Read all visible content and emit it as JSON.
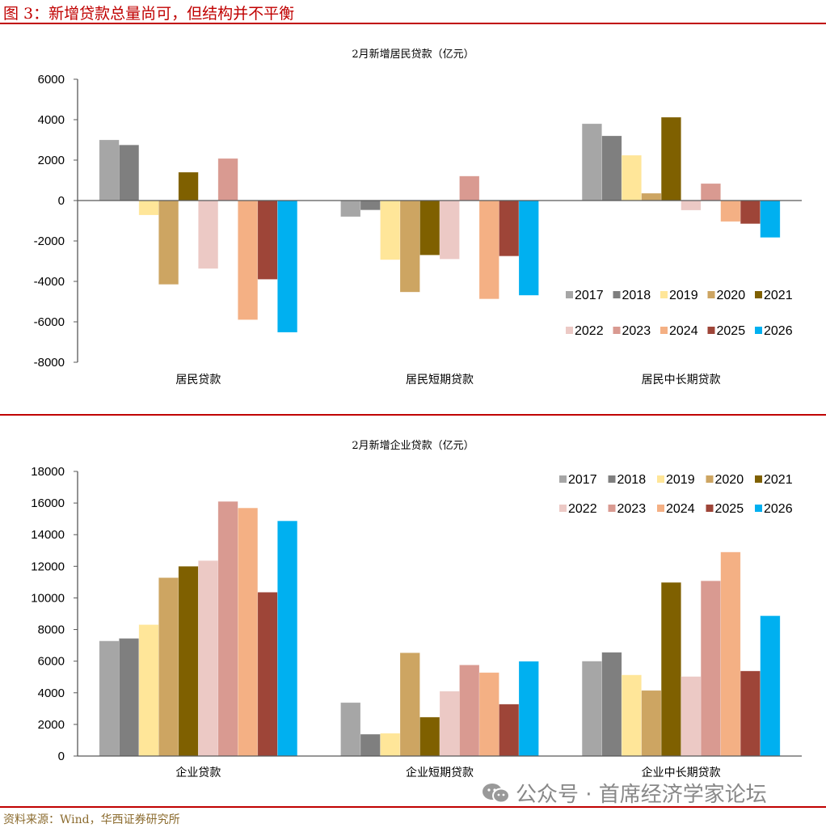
{
  "figure_title": "图 3：新增贷款总量尚可，但结构并不平衡",
  "source": "资料来源：Wind，华西证券研究所",
  "watermark": "公众号 · 首席经济学家论坛",
  "colors": {
    "2017": "#a6a6a6",
    "2018": "#7f7f7f",
    "2019": "#ffe699",
    "2020": "#cda562",
    "2021": "#7f6000",
    "2022": "#ecc9c5",
    "2023": "#d99a91",
    "2024": "#f4b084",
    "2025": "#9e4538",
    "2026": "#00b0f0",
    "rule": "#c00000"
  },
  "chart_data": [
    {
      "type": "bar",
      "title": "2月新增居民贷款（亿元）",
      "xlabel": "",
      "ylabel": "",
      "categories": [
        "居民贷款",
        "居民短期贷款",
        "居民中长期贷款"
      ],
      "ylim": [
        -8000,
        6000
      ],
      "yticks": [
        "6000",
        "4000",
        "2000",
        "0",
        "-2000",
        "-4000",
        "-6000",
        "-8000"
      ],
      "ytick_values": [
        6000,
        4000,
        2000,
        0,
        -2000,
        -4000,
        -6000,
        -8000
      ],
      "legend_position": "bottom-right",
      "grid": false,
      "series": [
        {
          "name": "2017",
          "values": [
            3000,
            -800,
            3800
          ]
        },
        {
          "name": "2018",
          "values": [
            2750,
            -470,
            3200
          ]
        },
        {
          "name": "2019",
          "values": [
            -720,
            -2930,
            2240
          ]
        },
        {
          "name": "2020",
          "values": [
            -4150,
            -4530,
            360
          ]
        },
        {
          "name": "2021",
          "values": [
            1400,
            -2700,
            4120
          ]
        },
        {
          "name": "2022",
          "values": [
            -3370,
            -2900,
            -480
          ]
        },
        {
          "name": "2023",
          "values": [
            2080,
            1210,
            840
          ]
        },
        {
          "name": "2024",
          "values": [
            -5900,
            -4870,
            -1040
          ]
        },
        {
          "name": "2025",
          "values": [
            -3900,
            -2750,
            -1150
          ]
        },
        {
          "name": "2026",
          "values": [
            -6520,
            -4690,
            -1830
          ]
        }
      ]
    },
    {
      "type": "bar",
      "title": "2月新增企业贷款（亿元）",
      "xlabel": "",
      "ylabel": "",
      "categories": [
        "企业贷款",
        "企业短期贷款",
        "企业中长期贷款"
      ],
      "ylim": [
        0,
        18000
      ],
      "yticks": [
        "18000",
        "16000",
        "14000",
        "12000",
        "10000",
        "8000",
        "6000",
        "4000",
        "2000",
        "0"
      ],
      "ytick_values": [
        18000,
        16000,
        14000,
        12000,
        10000,
        8000,
        6000,
        4000,
        2000,
        0
      ],
      "legend_position": "top-right",
      "grid": false,
      "series": [
        {
          "name": "2017",
          "values": [
            7280,
            3380,
            6000
          ]
        },
        {
          "name": "2018",
          "values": [
            7440,
            1380,
            6560
          ]
        },
        {
          "name": "2019",
          "values": [
            8310,
            1440,
            5130
          ]
        },
        {
          "name": "2020",
          "values": [
            11280,
            6530,
            4150
          ]
        },
        {
          "name": "2021",
          "values": [
            12000,
            2460,
            10980
          ]
        },
        {
          "name": "2022",
          "values": [
            12360,
            4100,
            5030
          ]
        },
        {
          "name": "2023",
          "values": [
            16100,
            5760,
            11080
          ]
        },
        {
          "name": "2024",
          "values": [
            15690,
            5280,
            12900
          ]
        },
        {
          "name": "2025",
          "values": [
            10360,
            3280,
            5380
          ]
        },
        {
          "name": "2026",
          "values": [
            14870,
            5990,
            8870
          ]
        }
      ]
    }
  ]
}
